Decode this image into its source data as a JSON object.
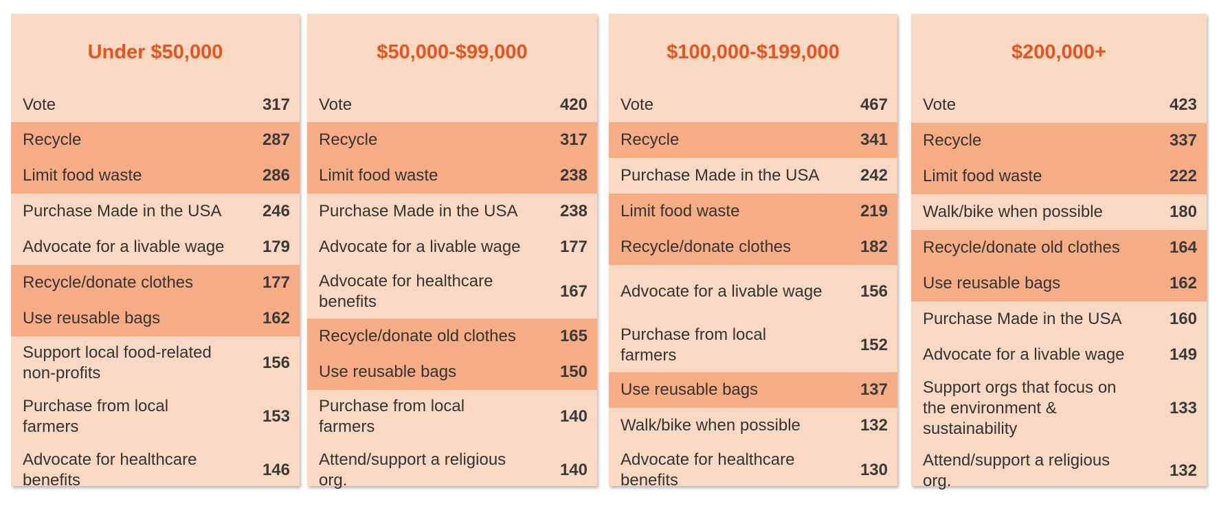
{
  "chart_data": {
    "type": "table",
    "columns": [
      {
        "title": "Under $50,000",
        "rows": [
          {
            "label": "Vote",
            "value": 317,
            "highlight": false
          },
          {
            "label": "Recycle",
            "value": 287,
            "highlight": true
          },
          {
            "label": "Limit food waste",
            "value": 286,
            "highlight": true
          },
          {
            "label": "Purchase Made in the USA",
            "value": 246,
            "highlight": false
          },
          {
            "label": "Advocate for a livable wage",
            "value": 179,
            "highlight": false
          },
          {
            "label": "Recycle/donate clothes",
            "value": 177,
            "highlight": true
          },
          {
            "label": "Use reusable bags",
            "value": 162,
            "highlight": true
          },
          {
            "label": "Support local food-related non-profits",
            "value": 156,
            "highlight": false
          },
          {
            "label": "Purchase from local farmers",
            "value": 153,
            "highlight": false
          },
          {
            "label": "Advocate for healthcare benefits",
            "value": 146,
            "highlight": false
          }
        ]
      },
      {
        "title": "$50,000-$99,000",
        "rows": [
          {
            "label": "Vote",
            "value": 420,
            "highlight": false
          },
          {
            "label": "Recycle",
            "value": 317,
            "highlight": true
          },
          {
            "label": "Limit food waste",
            "value": 238,
            "highlight": true
          },
          {
            "label": "Purchase Made in the USA",
            "value": 238,
            "highlight": false
          },
          {
            "label": "Advocate for a livable wage",
            "value": 177,
            "highlight": false
          },
          {
            "label": "Advocate for healthcare benefits",
            "value": 167,
            "highlight": false
          },
          {
            "label": "Recycle/donate old clothes",
            "value": 165,
            "highlight": true
          },
          {
            "label": "Use reusable bags",
            "value": 150,
            "highlight": true
          },
          {
            "label": "Purchase from local farmers",
            "value": 140,
            "highlight": false
          },
          {
            "label": "Attend/support a religious org.",
            "value": 140,
            "highlight": false
          }
        ]
      },
      {
        "title": "$100,000-$199,000",
        "rows": [
          {
            "label": "Vote",
            "value": 467,
            "highlight": false
          },
          {
            "label": "Recycle",
            "value": 341,
            "highlight": true
          },
          {
            "label": "Purchase Made in the USA",
            "value": 242,
            "highlight": false
          },
          {
            "label": "Limit food waste",
            "value": 219,
            "highlight": true
          },
          {
            "label": "Recycle/donate clothes",
            "value": 182,
            "highlight": true
          },
          {
            "label": "Advocate for a livable wage",
            "value": 156,
            "highlight": false
          },
          {
            "label": "Purchase from local farmers",
            "value": 152,
            "highlight": false
          },
          {
            "label": "Use reusable bags",
            "value": 137,
            "highlight": true
          },
          {
            "label": "Walk/bike when possible",
            "value": 132,
            "highlight": false
          },
          {
            "label": "Advocate for healthcare benefits",
            "value": 130,
            "highlight": false
          }
        ]
      },
      {
        "title": "$200,000+",
        "rows": [
          {
            "label": "Vote",
            "value": 423,
            "highlight": false
          },
          {
            "label": "Recycle",
            "value": 337,
            "highlight": true
          },
          {
            "label": "Limit food waste",
            "value": 222,
            "highlight": true
          },
          {
            "label": "Walk/bike when possible",
            "value": 180,
            "highlight": false
          },
          {
            "label": "Recycle/donate old clothes",
            "value": 164,
            "highlight": true
          },
          {
            "label": "Use reusable bags",
            "value": 162,
            "highlight": true
          },
          {
            "label": "Purchase Made in the USA",
            "value": 160,
            "highlight": false
          },
          {
            "label": "Advocate for a livable wage",
            "value": 149,
            "highlight": false
          },
          {
            "label": "Support orgs that focus on the environment & sustainability",
            "value": 133,
            "highlight": false
          },
          {
            "label": "Attend/support a religious org.",
            "value": 132,
            "highlight": false
          }
        ]
      }
    ],
    "colors": {
      "panel_background": "#fad9c4",
      "highlight_row": "#f6ac85",
      "title": "#e8531c",
      "text": "#333333"
    }
  }
}
